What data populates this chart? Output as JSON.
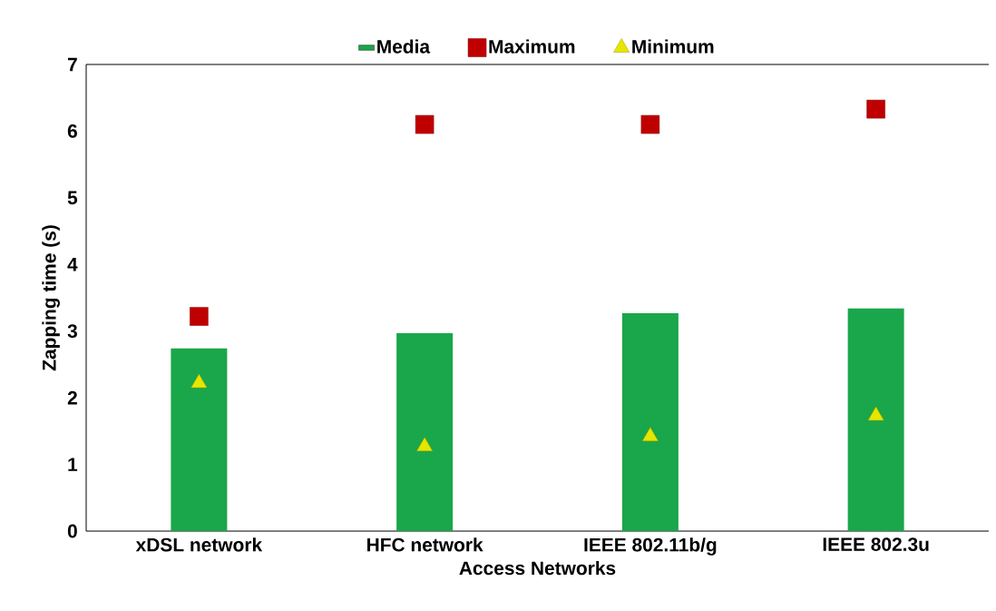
{
  "chart_data": {
    "type": "bar",
    "xlabel": "Access Networks",
    "ylabel": "Zapping time (s)",
    "categories": [
      "xDSL network",
      "HFC network",
      "IEEE 802.11b/g",
      "IEEE 802.3u"
    ],
    "series": [
      {
        "name": "Media",
        "color": "#1aa64a",
        "values": [
          2.74,
          2.97,
          3.27,
          3.34
        ]
      },
      {
        "name": "Maximum",
        "type": "scatter",
        "marker": "square",
        "color": "#c00000",
        "values": [
          3.22,
          6.1,
          6.1,
          6.33
        ]
      },
      {
        "name": "Minimum",
        "type": "scatter",
        "marker": "triangle",
        "color": "#e6e600",
        "values": [
          2.22,
          1.27,
          1.42,
          1.73
        ]
      }
    ],
    "ylim": [
      0,
      7
    ],
    "yticks": [
      0,
      1,
      2,
      3,
      4,
      5,
      6,
      7
    ],
    "grid": false,
    "legend": "top"
  }
}
